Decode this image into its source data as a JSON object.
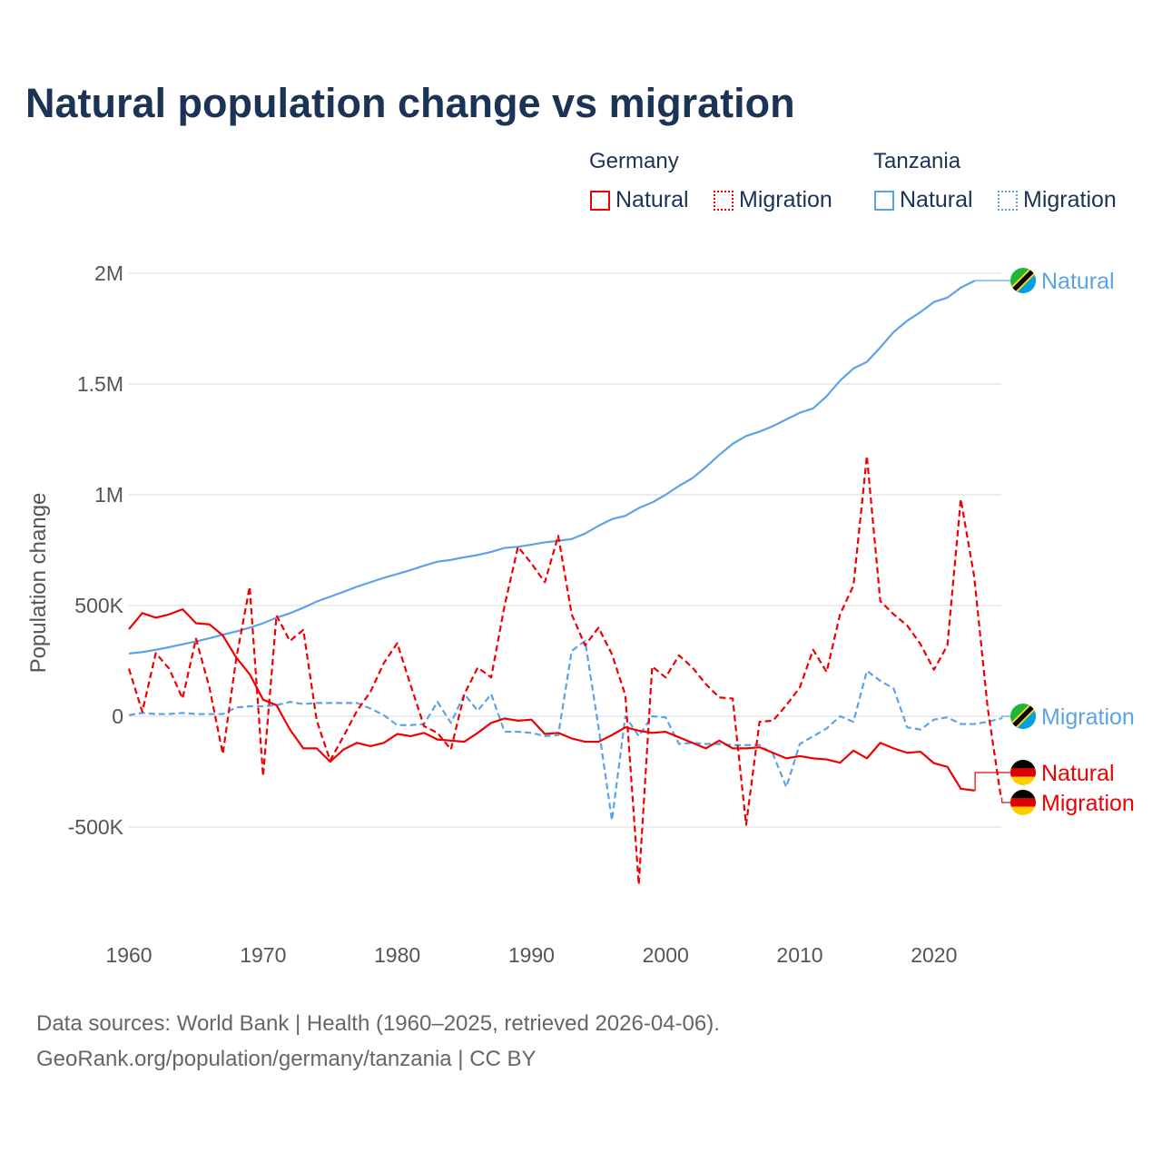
{
  "chart_data": {
    "type": "line",
    "title": "Natural population change vs migration",
    "ylabel": "Population change",
    "xlabel": "",
    "ylim": [
      -1000000,
      2100000
    ],
    "xlim": [
      1960,
      2025
    ],
    "x_ticks": [
      "1960",
      "1970",
      "1980",
      "1990",
      "2000",
      "2010",
      "2020"
    ],
    "y_ticks": [
      {
        "v": 2000000,
        "label": "2M"
      },
      {
        "v": 1500000,
        "label": "1.5M"
      },
      {
        "v": 1000000,
        "label": "1M"
      },
      {
        "v": 500000,
        "label": "500K"
      },
      {
        "v": 0,
        "label": "0"
      },
      {
        "v": -500000,
        "label": "-500K"
      }
    ],
    "grid": true,
    "legend": {
      "placement": "top-right",
      "groups": [
        {
          "name": "Germany",
          "items": [
            "Natural",
            "Migration"
          ]
        },
        {
          "name": "Tanzania",
          "items": [
            "Natural",
            "Migration"
          ]
        }
      ]
    },
    "start_year": 1960,
    "series": [
      {
        "country": "Tanzania",
        "name": "Natural",
        "color": "#5ba3e8",
        "dash": false,
        "end_label": "Natural",
        "flag": "tanzania",
        "values_k": [
          283,
          290,
          300,
          312,
          325,
          338,
          352,
          368,
          383,
          400,
          420,
          445,
          465,
          490,
          518,
          540,
          562,
          585,
          605,
          625,
          642,
          660,
          680,
          698,
          706,
          718,
          728,
          742,
          760,
          765,
          775,
          785,
          792,
          800,
          825,
          860,
          890,
          905,
          940,
          965,
          1000,
          1040,
          1075,
          1125,
          1180,
          1230,
          1265,
          1285,
          1310,
          1340,
          1370,
          1390,
          1445,
          1515,
          1570,
          1600,
          1665,
          1735,
          1785,
          1825,
          1870,
          1890,
          1935,
          1965
        ]
      },
      {
        "country": "Tanzania",
        "name": "Migration",
        "color": "#5ba3e8",
        "dash": true,
        "end_label": "Migration",
        "flag": "tanzania",
        "values_k": [
          5,
          15,
          10,
          10,
          15,
          10,
          10,
          10,
          40,
          45,
          45,
          50,
          65,
          55,
          60,
          60,
          60,
          60,
          35,
          5,
          -40,
          -40,
          -35,
          65,
          -30,
          100,
          25,
          100,
          -70,
          -70,
          -75,
          -90,
          -85,
          295,
          340,
          -50,
          -470,
          0,
          -90,
          0,
          -5,
          -125,
          -120,
          -125,
          -125,
          -130,
          -130,
          -130,
          -170,
          -320,
          -125,
          -90,
          -55,
          0,
          -25,
          205,
          160,
          125,
          -50,
          -60,
          -15,
          -5,
          -35,
          -35,
          -25,
          -10
        ]
      },
      {
        "country": "Germany",
        "name": "Natural",
        "color": "#f00000",
        "dash": false,
        "end_label": "Natural",
        "flag": "germany",
        "values_k": [
          393,
          466,
          445,
          460,
          483,
          420,
          415,
          365,
          265,
          190,
          75,
          50,
          -60,
          -145,
          -145,
          -205,
          -150,
          -120,
          -135,
          -120,
          -80,
          -90,
          -75,
          -105,
          -110,
          -115,
          -75,
          -30,
          -10,
          -20,
          -15,
          -80,
          -75,
          -100,
          -115,
          -115,
          -85,
          -50,
          -65,
          -75,
          -70,
          -95,
          -120,
          -145,
          -110,
          -145,
          -145,
          -140,
          -165,
          -190,
          -180,
          -190,
          -195,
          -210,
          -155,
          -190,
          -120,
          -145,
          -165,
          -160,
          -212,
          -228,
          -327,
          -335
        ]
      },
      {
        "country": "Germany",
        "name": "Migration",
        "color": "#f00000",
        "dash": true,
        "end_label": "Migration",
        "flag": "germany",
        "values_k": [
          215,
          20,
          285,
          215,
          80,
          350,
          130,
          -170,
          260,
          585,
          -270,
          455,
          340,
          390,
          -20,
          -200,
          -90,
          25,
          110,
          240,
          330,
          140,
          -45,
          -75,
          -150,
          100,
          220,
          175,
          500,
          765,
          690,
          605,
          815,
          460,
          320,
          400,
          280,
          95,
          -760,
          225,
          175,
          275,
          220,
          145,
          85,
          80,
          -490,
          -25,
          -20,
          50,
          130,
          300,
          200,
          460,
          590,
          1175,
          520,
          460,
          410,
          325,
          210,
          320,
          980,
          630,
          40,
          -370
        ]
      }
    ]
  },
  "footer": {
    "line1": "Data sources: World Bank | Health (1960–2025, retrieved 2026-04-06).",
    "line2": "GeoRank.org/population/germany/tanzania | CC BY"
  },
  "colors": {
    "germany": "#f00000",
    "tanzania": "#5ba3e8",
    "title": "#1b3354"
  }
}
